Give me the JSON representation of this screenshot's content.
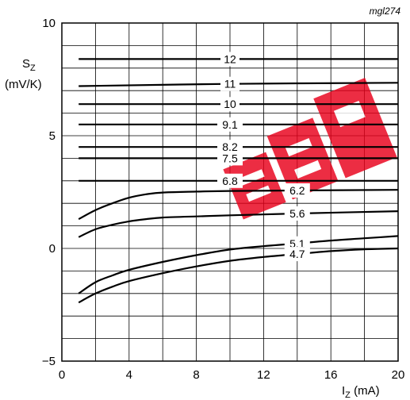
{
  "chart_data": {
    "type": "line",
    "reference": "mgl274",
    "ylabel_main": "S",
    "ylabel_sub": "Z",
    "ylabel_unit": "(mV/K)",
    "xlabel_main": "I",
    "xlabel_sub": "Z",
    "xlabel_unit": " (mA)",
    "xlim": [
      0,
      20
    ],
    "ylim": [
      -5,
      10
    ],
    "x_ticks": [
      0,
      4,
      8,
      12,
      16,
      20
    ],
    "x_tick_labels": [
      "0",
      "4",
      "8",
      "12",
      "16",
      "20"
    ],
    "y_ticks": [
      -5,
      0,
      5,
      10
    ],
    "y_tick_labels": [
      "−5",
      "0",
      "5",
      "10"
    ],
    "grid": true,
    "grid_x_step": 2,
    "grid_y_step": 1,
    "watermark_color": "#e8001a",
    "series": [
      {
        "name": "12",
        "label_x": 10,
        "x": [
          1,
          20
        ],
        "y": [
          8.4,
          8.4
        ]
      },
      {
        "name": "11",
        "label_x": 10,
        "x": [
          1,
          10,
          20
        ],
        "y": [
          7.2,
          7.3,
          7.35
        ]
      },
      {
        "name": "10",
        "label_x": 10,
        "x": [
          1,
          20
        ],
        "y": [
          6.4,
          6.4
        ]
      },
      {
        "name": "9.1",
        "label_x": 10,
        "x": [
          1,
          20
        ],
        "y": [
          5.5,
          5.5
        ]
      },
      {
        "name": "8.2",
        "label_x": 10,
        "x": [
          1,
          20
        ],
        "y": [
          4.5,
          4.5
        ]
      },
      {
        "name": "7.5",
        "label_x": 10,
        "x": [
          1,
          20
        ],
        "y": [
          4.0,
          4.0
        ]
      },
      {
        "name": "6.8",
        "label_x": 10,
        "x": [
          1,
          20
        ],
        "y": [
          3.0,
          3.0
        ]
      },
      {
        "name": "6.2",
        "label_x": 14,
        "x": [
          1,
          2,
          3,
          4,
          5,
          6,
          8,
          10,
          14,
          20
        ],
        "y": [
          1.3,
          1.7,
          2.0,
          2.25,
          2.4,
          2.48,
          2.52,
          2.55,
          2.57,
          2.6
        ]
      },
      {
        "name": "5.6",
        "label_x": 14,
        "x": [
          1,
          2,
          3,
          4,
          5,
          6,
          8,
          10,
          14,
          20
        ],
        "y": [
          0.5,
          0.85,
          1.05,
          1.2,
          1.3,
          1.37,
          1.42,
          1.47,
          1.55,
          1.65
        ]
      },
      {
        "name": "5.1",
        "label_x": 14,
        "x": [
          1,
          2,
          3,
          4,
          6,
          8,
          10,
          12,
          14,
          16,
          18,
          20
        ],
        "y": [
          -2.0,
          -1.5,
          -1.2,
          -0.95,
          -0.6,
          -0.3,
          -0.05,
          0.1,
          0.22,
          0.35,
          0.45,
          0.55
        ]
      },
      {
        "name": "4.7",
        "label_x": 14,
        "x": [
          1,
          2,
          3,
          4,
          6,
          8,
          10,
          12,
          14,
          16,
          18,
          20
        ],
        "y": [
          -2.4,
          -2.0,
          -1.7,
          -1.45,
          -1.1,
          -0.8,
          -0.55,
          -0.38,
          -0.25,
          -0.12,
          -0.04,
          0.0
        ]
      }
    ]
  }
}
